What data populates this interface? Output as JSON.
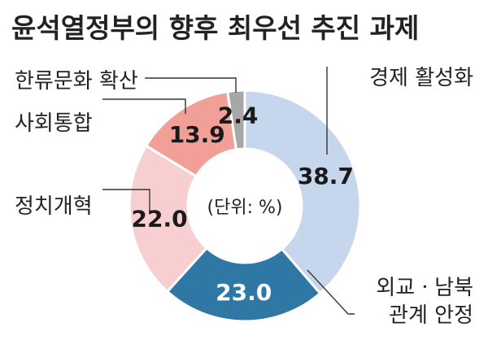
{
  "chart_data": {
    "type": "pie",
    "title": "윤석열정부의 향후 최우선 추진 과제",
    "unit_note": "(단위: %)",
    "slices": [
      {
        "label": "경제 활성화",
        "value": 38.7,
        "color": "#c5d6ed",
        "text_color": "#1a1a1a"
      },
      {
        "label": "외교ㆍ남북 관계 안정",
        "label_lines": [
          "외교ㆍ남북",
          "관계 안정"
        ],
        "value": 23.0,
        "color": "#2f78a6",
        "text_color": "#ffffff"
      },
      {
        "label": "정치개혁",
        "value": 22.0,
        "color": "#f8cfd1",
        "text_color": "#1a1a1a"
      },
      {
        "label": "사회통합",
        "value": 13.9,
        "color": "#f29f98",
        "text_color": "#1a1a1a"
      },
      {
        "label": "한류문화 확산",
        "value": 2.4,
        "color": "#a7a7a7",
        "text_color": "#1a1a1a"
      }
    ],
    "legend": "none"
  }
}
